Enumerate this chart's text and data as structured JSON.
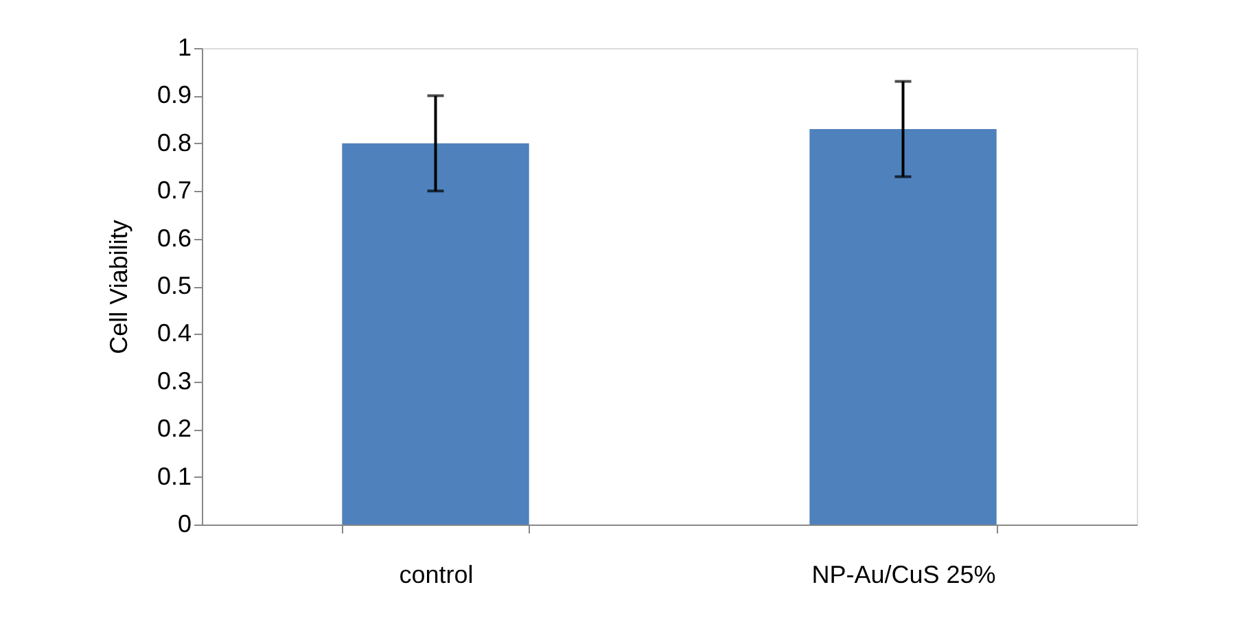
{
  "chart_data": {
    "type": "bar",
    "ylabel": "Cell Viability",
    "categories": [
      "control",
      "NP-Au/CuS 25%"
    ],
    "values": [
      0.8,
      0.83
    ],
    "errors": [
      0.1,
      0.1
    ],
    "color": "#4f81bd",
    "ylim": [
      0,
      1
    ],
    "yticks": [
      0,
      0.1,
      0.2,
      0.3,
      0.4,
      0.5,
      0.6,
      0.7,
      0.8,
      0.9,
      1
    ],
    "grid": false,
    "legend": false
  }
}
